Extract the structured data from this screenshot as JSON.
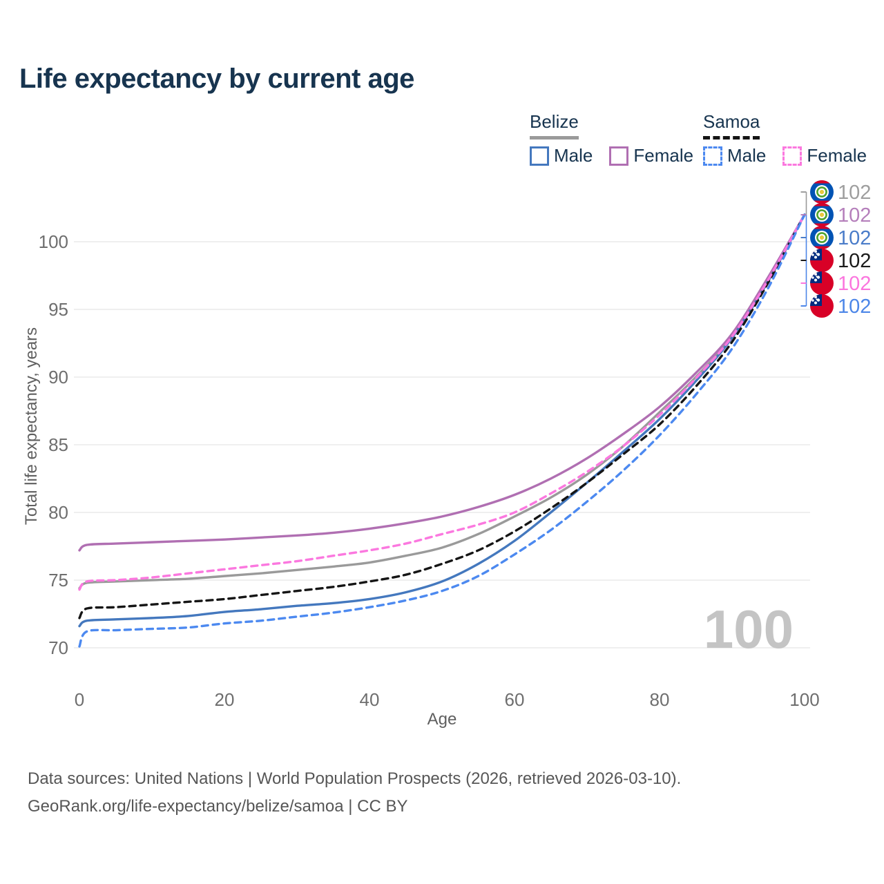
{
  "title": "Life expectancy by current age",
  "legend": {
    "groups": [
      {
        "name": "Belize",
        "line_style": "solid",
        "underline_color": "#9A9A9A",
        "items": [
          {
            "label": "Male",
            "color": "#4478BE"
          },
          {
            "label": "Female",
            "color": "#B06FB2"
          }
        ]
      },
      {
        "name": "Samoa",
        "line_style": "dashed",
        "underline_color": "#151515",
        "items": [
          {
            "label": "Male",
            "color": "#4C89F0"
          },
          {
            "label": "Female",
            "color": "#FB78DF"
          }
        ]
      }
    ]
  },
  "watermark_age": "100",
  "footer": {
    "line1": "Data sources: United Nations | World Population Prospects (2026, retrieved 2026-03-10).",
    "line2": "GeoRank.org/life-expectancy/belize/samoa | CC BY"
  },
  "colors": {
    "title_text": "#17344F",
    "axis_text": "#6E6E6E",
    "gridline": "#EAEAEA",
    "watermark": "#C4C4C4",
    "belize_flag_blue": "#0153B4",
    "flag_red": "#D80127",
    "samoa_flag_blue": "#002B7F"
  },
  "chart_data": {
    "type": "line",
    "title": "Life expectancy by current age",
    "xlabel": "Age",
    "ylabel": "Total life expectancy, years",
    "xlim": [
      0,
      100
    ],
    "ylim": [
      69,
      103.5
    ],
    "x_ticks": [
      "0",
      "20",
      "40",
      "60",
      "80",
      "100"
    ],
    "x_tick_values": [
      0,
      20,
      40,
      60,
      80,
      100
    ],
    "y_ticks": [
      "70",
      "75",
      "80",
      "85",
      "90",
      "95",
      "100"
    ],
    "y_tick_values": [
      70,
      75,
      80,
      85,
      90,
      95,
      100
    ],
    "grid": "horizontal",
    "legend_position": "top-right",
    "ages": [
      0,
      1,
      5,
      10,
      15,
      20,
      25,
      30,
      35,
      40,
      45,
      50,
      55,
      60,
      65,
      70,
      75,
      80,
      85,
      90,
      95,
      100
    ],
    "series": [
      {
        "name": "Belize total",
        "country": "Belize",
        "sex": "total",
        "flag": "belize",
        "color": "#9A9A9A",
        "dashed": false,
        "end_label": "102",
        "end_label_color": "#9E9E9E",
        "values": [
          74.4,
          74.8,
          74.9,
          75.0,
          75.1,
          75.3,
          75.5,
          75.75,
          76.0,
          76.3,
          76.8,
          77.4,
          78.4,
          79.7,
          81.1,
          82.8,
          84.9,
          87.4,
          90.0,
          93.0,
          97.2,
          102
        ]
      },
      {
        "name": "Belize female",
        "country": "Belize",
        "sex": "female",
        "flag": "belize",
        "color": "#B06FB2",
        "dashed": false,
        "end_label": "102",
        "end_label_color": "#B57FBB",
        "values": [
          77.2,
          77.6,
          77.7,
          77.8,
          77.9,
          78.0,
          78.15,
          78.3,
          78.5,
          78.8,
          79.2,
          79.7,
          80.4,
          81.3,
          82.5,
          84.0,
          85.8,
          87.8,
          90.3,
          93.2,
          97.4,
          102
        ]
      },
      {
        "name": "Belize male",
        "country": "Belize",
        "sex": "male",
        "flag": "belize",
        "color": "#4478BE",
        "dashed": false,
        "end_label": "102",
        "end_label_color": "#4A7CC9",
        "values": [
          71.6,
          72.0,
          72.1,
          72.2,
          72.35,
          72.65,
          72.85,
          73.1,
          73.3,
          73.6,
          74.1,
          74.9,
          76.2,
          77.9,
          80.0,
          82.2,
          84.5,
          86.9,
          89.7,
          92.9,
          97.1,
          102
        ]
      },
      {
        "name": "Samoa total",
        "country": "Samoa",
        "sex": "total",
        "flag": "samoa",
        "color": "#151515",
        "dashed": true,
        "end_label": "102",
        "end_label_color": "#1A1A1A",
        "values": [
          72.2,
          72.9,
          73.0,
          73.2,
          73.4,
          73.6,
          73.9,
          74.2,
          74.5,
          74.9,
          75.4,
          76.2,
          77.2,
          78.6,
          80.3,
          82.2,
          84.3,
          86.5,
          89.3,
          92.6,
          97.0,
          102
        ]
      },
      {
        "name": "Samoa female",
        "country": "Samoa",
        "sex": "female",
        "flag": "samoa",
        "color": "#FB78DF",
        "dashed": true,
        "end_label": "102",
        "end_label_color": "#FB75DE",
        "values": [
          74.3,
          74.9,
          75.0,
          75.2,
          75.5,
          75.8,
          76.1,
          76.4,
          76.8,
          77.2,
          77.7,
          78.4,
          79.1,
          80.0,
          81.4,
          83.0,
          84.9,
          87.2,
          89.9,
          93.0,
          97.2,
          102
        ]
      },
      {
        "name": "Samoa male",
        "country": "Samoa",
        "sex": "male",
        "flag": "samoa",
        "color": "#4C89F0",
        "dashed": true,
        "end_label": "102",
        "end_label_color": "#4C86E8",
        "values": [
          70.1,
          71.2,
          71.3,
          71.4,
          71.5,
          71.8,
          72.0,
          72.3,
          72.6,
          73.0,
          73.5,
          74.2,
          75.3,
          76.9,
          78.7,
          80.8,
          83.1,
          85.7,
          88.7,
          92.1,
          96.6,
          102
        ]
      }
    ]
  }
}
